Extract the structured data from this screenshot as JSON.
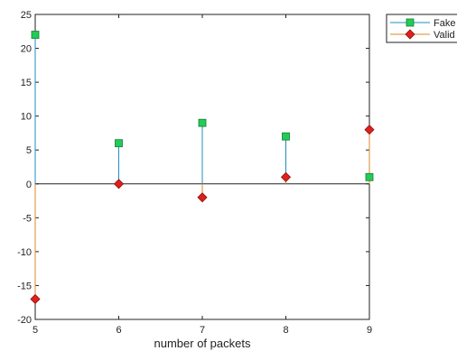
{
  "chart_data": {
    "type": "stem",
    "title": "",
    "xlabel": "number of packets",
    "ylabel": "",
    "x": [
      5,
      6,
      7,
      8,
      9
    ],
    "xlim": [
      5,
      9
    ],
    "ylim": [
      -20,
      25
    ],
    "xticks": [
      5,
      6,
      7,
      8,
      9
    ],
    "yticks": [
      -20,
      -15,
      -10,
      -5,
      0,
      5,
      10,
      15,
      20,
      25
    ],
    "baseline": 0,
    "grid": false,
    "legend_position": "top-right",
    "series": [
      {
        "name": "Fake",
        "values": [
          22,
          6,
          9,
          7,
          1
        ],
        "color": "#1f8fbf",
        "marker": "square",
        "marker_color": "#22cc55"
      },
      {
        "name": "Valid",
        "values": [
          -17,
          0,
          -2,
          1,
          8
        ],
        "color": "#d98a2b",
        "marker": "diamond",
        "marker_color": "#e0201a"
      }
    ]
  }
}
